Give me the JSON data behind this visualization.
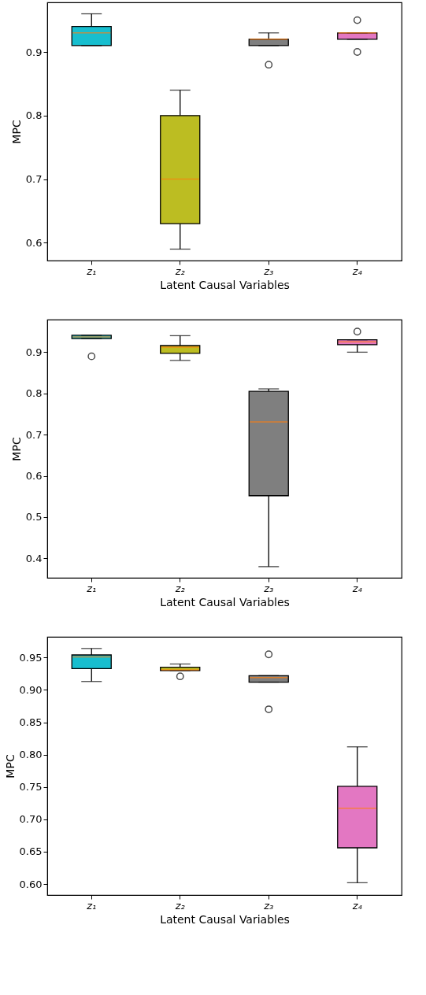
{
  "chart_data": [
    {
      "type": "box",
      "xlabel": "Latent Causal Variables",
      "ylabel": "MPC",
      "categories": [
        "z₁",
        "z₂",
        "z₃",
        "z₄"
      ],
      "colors": [
        "#17becf",
        "#bcbd22",
        "#7f7f7f",
        "#e377c2"
      ],
      "boxes": [
        {
          "low": 0.91,
          "q1": 0.91,
          "median": 0.93,
          "q3": 0.94,
          "high": 0.96
        },
        {
          "low": 0.59,
          "q1": 0.63,
          "median": 0.7,
          "q3": 0.8,
          "high": 0.84
        },
        {
          "low": 0.91,
          "q1": 0.91,
          "median": 0.92,
          "q3": 0.92,
          "high": 0.93,
          "outliers": [
            0.88
          ]
        },
        {
          "low": 0.92,
          "q1": 0.92,
          "median": 0.93,
          "q3": 0.93,
          "high": 0.93,
          "outliers": [
            0.95,
            0.9
          ]
        }
      ],
      "ylim": [
        0.572,
        0.978
      ],
      "yticks": [
        0.6,
        0.7,
        0.8,
        0.9
      ],
      "grid": false
    },
    {
      "type": "box",
      "xlabel": "Latent Causal Variables",
      "ylabel": "MPC",
      "categories": [
        "z₁",
        "z₂",
        "z₃",
        "z₄"
      ],
      "colors": [
        "#17becf",
        "#bcbd22",
        "#7f7f7f",
        "#e377c2"
      ],
      "boxes": [
        {
          "low": 0.933,
          "q1": 0.933,
          "median": 0.937,
          "q3": 0.941,
          "high": 0.941,
          "outliers": [
            0.89
          ]
        },
        {
          "low": 0.88,
          "q1": 0.897,
          "median": 0.912,
          "q3": 0.916,
          "high": 0.94
        },
        {
          "low": 0.38,
          "q1": 0.552,
          "median": 0.731,
          "q3": 0.805,
          "high": 0.811
        },
        {
          "low": 0.9,
          "q1": 0.918,
          "median": 0.925,
          "q3": 0.93,
          "high": 0.93,
          "outliers": [
            0.95
          ]
        }
      ],
      "ylim": [
        0.353,
        0.979
      ],
      "yticks": [
        0.4,
        0.5,
        0.6,
        0.7,
        0.8,
        0.9
      ],
      "grid": false
    },
    {
      "type": "box",
      "xlabel": "Latent Causal Variables",
      "ylabel": "MPC",
      "categories": [
        "z₁",
        "z₂",
        "z₃",
        "z₄"
      ],
      "colors": [
        "#17becf",
        "#bcbd22",
        "#7f7f7f",
        "#e377c2"
      ],
      "boxes": [
        {
          "low": 0.913,
          "q1": 0.933,
          "median": 0.951,
          "q3": 0.954,
          "high": 0.964
        },
        {
          "low": 0.93,
          "q1": 0.93,
          "median": 0.931,
          "q3": 0.935,
          "high": 0.94,
          "outliers": [
            0.921
          ]
        },
        {
          "low": 0.912,
          "q1": 0.912,
          "median": 0.919,
          "q3": 0.922,
          "high": 0.922,
          "outliers": [
            0.955,
            0.87
          ]
        },
        {
          "low": 0.602,
          "q1": 0.656,
          "median": 0.717,
          "q3": 0.751,
          "high": 0.812
        }
      ],
      "ylim": [
        0.583,
        0.982
      ],
      "yticks": [
        {
          "value": 0.6,
          "label": "0.60"
        },
        {
          "value": 0.65,
          "label": "0.65"
        },
        {
          "value": 0.7,
          "label": "0.70"
        },
        {
          "value": 0.75,
          "label": "0.75"
        },
        {
          "value": 0.8,
          "label": "0.80"
        },
        {
          "value": 0.85,
          "label": "0.85"
        },
        {
          "value": 0.9,
          "label": "0.90"
        },
        {
          "value": 0.95,
          "label": "0.95"
        }
      ],
      "grid": false
    }
  ]
}
